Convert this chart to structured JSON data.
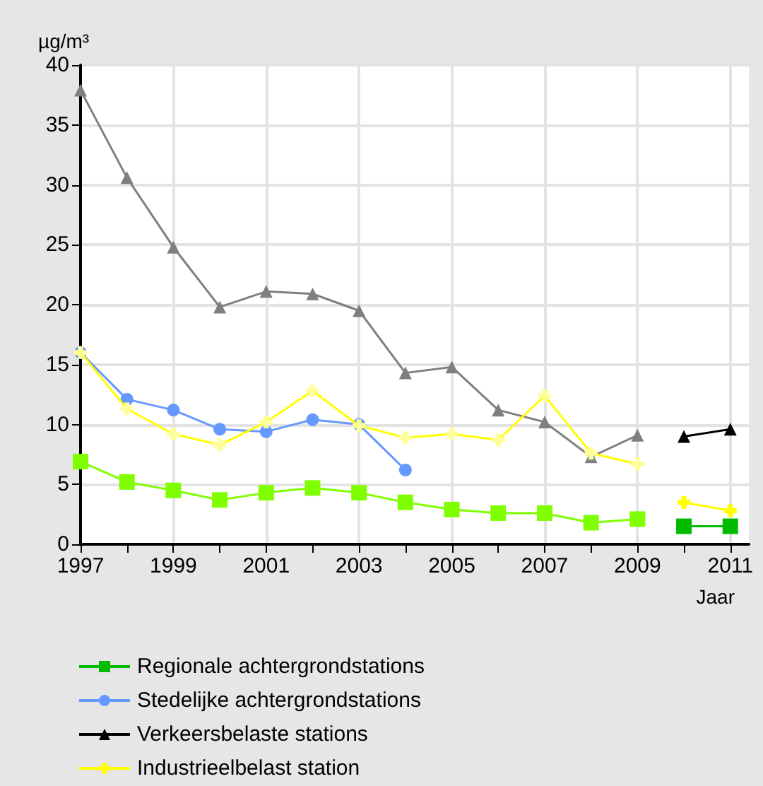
{
  "chart_data": {
    "type": "line",
    "ylabel": "µg/m³",
    "xlabel": "Jaar",
    "xlim": [
      1997,
      2011.4
    ],
    "xticks": [
      1997,
      {
        "value": 1998,
        "label": null
      },
      1999,
      {
        "value": 2000,
        "label": null
      },
      2001,
      {
        "value": 2002,
        "label": null
      },
      2003,
      {
        "value": 2004,
        "label": null
      },
      2005,
      {
        "value": 2006,
        "label": null
      },
      2007,
      {
        "value": 2008,
        "label": null
      },
      2009,
      {
        "value": 2010,
        "label": null
      },
      2011
    ],
    "ylim": [
      0,
      40
    ],
    "yticks": [
      0,
      5,
      10,
      15,
      20,
      25,
      30,
      35,
      40
    ],
    "grid": true,
    "legend": "bottom",
    "line_style": "solid",
    "series": [
      {
        "color": "#7f7f7f",
        "marker": "triangle",
        "x": [
          1997,
          1998,
          1999,
          2000,
          2001,
          2002,
          2003,
          2004,
          2005,
          2006,
          2007,
          2008,
          2009
        ],
        "values": [
          37.9,
          30.6,
          24.8,
          19.8,
          21.1,
          20.9,
          19.5,
          14.3,
          14.8,
          11.2,
          10.2,
          7.3,
          9.1
        ]
      },
      {
        "color": "#80ff00",
        "marker": "square",
        "x": [
          1997,
          1998,
          1999,
          2000,
          2001,
          2002,
          2003,
          2004,
          2005,
          2006,
          2007,
          2008,
          2009
        ],
        "values": [
          6.9,
          5.2,
          4.5,
          3.7,
          4.3,
          4.7,
          4.3,
          3.5,
          2.9,
          2.6,
          2.6,
          1.8,
          2.1
        ]
      },
      {
        "color": "#ffff00",
        "marker": "cross",
        "x": [
          1997,
          1998,
          1999,
          2000,
          2001,
          2002,
          2003,
          2004,
          2005,
          2006,
          2007,
          2008,
          2009
        ],
        "values": [
          16.0,
          11.3,
          9.2,
          8.3,
          10.2,
          12.8,
          9.9,
          8.9,
          9.2,
          8.7,
          12.4,
          7.6,
          6.7
        ]
      },
      {
        "name": "Regionale achtergrondstations",
        "color": "#00bb00",
        "marker": "square",
        "x": [
          2010,
          2011
        ],
        "values": [
          1.5,
          1.5
        ]
      },
      {
        "name": "Stedelijke achtergrondstations",
        "color": "#6699ff",
        "marker": "circle",
        "x": [
          1997,
          1998,
          1999,
          2000,
          2001,
          2002,
          2003,
          2004
        ],
        "values": [
          16.0,
          12.1,
          11.2,
          9.6,
          9.4,
          10.4,
          10.0,
          6.2
        ]
      },
      {
        "name": "Verkeersbelaste stations",
        "color": "#000000",
        "marker": "triangle",
        "x": [
          2010,
          2011
        ],
        "values": [
          9.0,
          9.6
        ]
      },
      {
        "name": "Industrieelbelast station",
        "color": "#ffff00",
        "marker": "cross",
        "x": [
          2010,
          2011
        ],
        "values": [
          3.5,
          2.8
        ]
      }
    ]
  }
}
